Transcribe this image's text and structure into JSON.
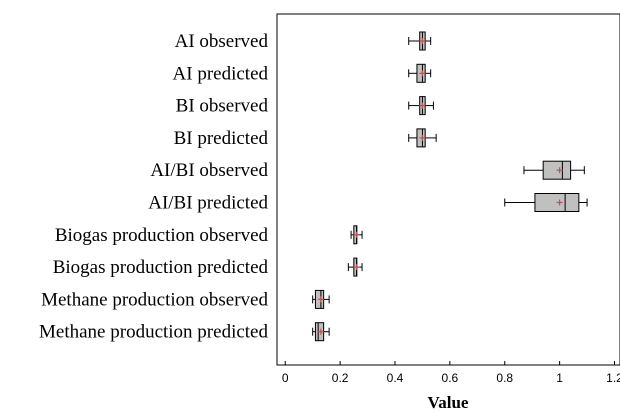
{
  "chart_data": {
    "type": "boxplot",
    "title": "",
    "xlabel": "Value",
    "ylabel": "",
    "xlim": [
      -0.03,
      1.22
    ],
    "xticks": [
      0,
      0.2,
      0.4,
      0.6,
      0.8,
      1,
      1.2
    ],
    "xtick_labels": [
      "0",
      "0.2",
      "0.4",
      "0.6",
      "0.8",
      "1",
      "1.2"
    ],
    "grid": false,
    "colors": {
      "box": "#c0c0c0",
      "mean_marker": "#c0504d",
      "stroke": "#000000"
    },
    "categories": [
      "AI observed",
      "AI predicted",
      "BI observed",
      "BI predicted",
      "AI/BI observed",
      "AI/BI predicted",
      "Biogas production observed",
      "Biogas production predicted",
      "Methane production observed",
      "Methane production predicted"
    ],
    "boxes": [
      {
        "min": 0.45,
        "q1": 0.49,
        "median": 0.5,
        "q3": 0.51,
        "max": 0.53,
        "mean": 0.5
      },
      {
        "min": 0.45,
        "q1": 0.48,
        "median": 0.5,
        "q3": 0.51,
        "max": 0.53,
        "mean": 0.5
      },
      {
        "min": 0.45,
        "q1": 0.49,
        "median": 0.5,
        "q3": 0.51,
        "max": 0.54,
        "mean": 0.5
      },
      {
        "min": 0.45,
        "q1": 0.48,
        "median": 0.5,
        "q3": 0.51,
        "max": 0.55,
        "mean": 0.5
      },
      {
        "min": 0.87,
        "q1": 0.94,
        "median": 1.01,
        "q3": 1.04,
        "max": 1.09,
        "mean": 1.0
      },
      {
        "min": 0.8,
        "q1": 0.91,
        "median": 1.02,
        "q3": 1.07,
        "max": 1.1,
        "mean": 1.0
      },
      {
        "min": 0.24,
        "q1": 0.25,
        "median": 0.26,
        "q3": 0.26,
        "max": 0.28,
        "mean": 0.26
      },
      {
        "min": 0.23,
        "q1": 0.25,
        "median": 0.26,
        "q3": 0.26,
        "max": 0.28,
        "mean": 0.26
      },
      {
        "min": 0.1,
        "q1": 0.11,
        "median": 0.13,
        "q3": 0.14,
        "max": 0.16,
        "mean": 0.13
      },
      {
        "min": 0.1,
        "q1": 0.11,
        "median": 0.12,
        "q3": 0.14,
        "max": 0.16,
        "mean": 0.13
      }
    ]
  }
}
